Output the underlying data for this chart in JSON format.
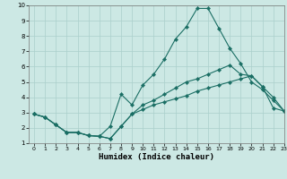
{
  "xlabel": "Humidex (Indice chaleur)",
  "background_color": "#cce8e4",
  "grid_color": "#aacfcb",
  "line_color": "#1a6e64",
  "xlim": [
    -0.5,
    23
  ],
  "ylim": [
    1,
    10
  ],
  "xticks": [
    0,
    1,
    2,
    3,
    4,
    5,
    6,
    7,
    8,
    9,
    10,
    11,
    12,
    13,
    14,
    15,
    16,
    17,
    18,
    19,
    20,
    21,
    22,
    23
  ],
  "yticks": [
    1,
    2,
    3,
    4,
    5,
    6,
    7,
    8,
    9,
    10
  ],
  "line1_x": [
    0,
    1,
    2,
    3,
    4,
    5,
    6,
    7,
    8,
    9,
    10,
    11,
    12,
    13,
    14,
    15,
    16,
    17,
    18,
    19,
    20,
    21,
    22,
    23
  ],
  "line1_y": [
    2.9,
    2.7,
    2.2,
    1.7,
    1.7,
    1.5,
    1.45,
    1.3,
    2.1,
    2.9,
    3.5,
    3.8,
    4.2,
    4.6,
    5.0,
    5.2,
    5.5,
    5.8,
    6.1,
    5.5,
    5.4,
    4.7,
    4.0,
    3.1
  ],
  "line2_x": [
    0,
    1,
    2,
    3,
    4,
    5,
    6,
    7,
    8,
    9,
    10,
    11,
    12,
    13,
    14,
    15,
    16,
    17,
    18,
    19,
    20,
    21,
    22,
    23
  ],
  "line2_y": [
    2.9,
    2.7,
    2.2,
    1.7,
    1.7,
    1.5,
    1.45,
    2.1,
    4.2,
    3.5,
    4.8,
    5.5,
    6.5,
    7.8,
    8.6,
    9.8,
    9.8,
    8.5,
    7.2,
    6.2,
    5.0,
    4.5,
    3.8,
    3.1
  ],
  "line3_x": [
    0,
    1,
    2,
    3,
    4,
    5,
    6,
    7,
    8,
    9,
    10,
    11,
    12,
    13,
    14,
    15,
    16,
    17,
    18,
    19,
    20,
    21,
    22,
    23
  ],
  "line3_y": [
    2.9,
    2.7,
    2.2,
    1.7,
    1.7,
    1.5,
    1.45,
    1.3,
    2.1,
    2.9,
    3.2,
    3.5,
    3.7,
    3.9,
    4.1,
    4.4,
    4.6,
    4.8,
    5.0,
    5.2,
    5.4,
    4.7,
    3.3,
    3.1
  ]
}
